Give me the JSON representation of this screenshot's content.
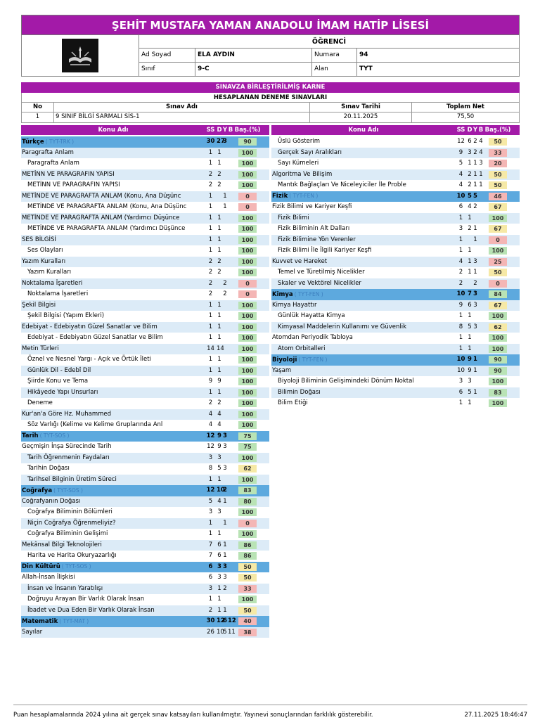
{
  "school_title": "ŞEHİT MUSTAFA YAMAN ANADOLU İMAM HATİP LİSESİ",
  "student": {
    "heading": "ÖĞRENCİ",
    "name_label": "Ad Soyad",
    "name": "ELA AYDIN",
    "number_label": "Numara",
    "number": "94",
    "class_label": "Sınıf",
    "class": "9-C",
    "field_label": "Alan",
    "field": "TYT"
  },
  "section_title": "SINAVZA BİRLEŞTİRİLMİŞ KARNE",
  "exams": {
    "heading": "HESAPLANAN DENEME SINAVLARI",
    "headers": [
      "No",
      "Sınav Adı",
      "Sınav Tarihi",
      "Toplam Net"
    ],
    "rows": [
      [
        "1",
        "9 SINIF BİLGİ SARMALI SİS-1",
        "20.11.2025",
        "75,50"
      ]
    ]
  },
  "table_headers": {
    "konu": "Konu Adı",
    "ss": "SS",
    "d": "D",
    "y": "Y",
    "b": "B",
    "bas": "Baş.(%)"
  },
  "left_rows": [
    {
      "name": "Türkçe",
      "tag": "( TYT-TRK )",
      "ss": "30",
      "d": "27",
      "y": "3",
      "b": "",
      "pct": "90",
      "level": "main"
    },
    {
      "name": "Paragrafta Anlam",
      "ss": "1",
      "d": "1",
      "y": "",
      "b": "",
      "pct": "100",
      "level": "top"
    },
    {
      "name": "Paragrafta Anlam",
      "ss": "1",
      "d": "1",
      "y": "",
      "b": "",
      "pct": "100",
      "level": "sub"
    },
    {
      "name": "METİNN VE PARAGRAFIN YAPISI",
      "ss": "2",
      "d": "2",
      "y": "",
      "b": "",
      "pct": "100",
      "level": "top"
    },
    {
      "name": "METİNN VE PARAGRAFIN YAPISI",
      "ss": "2",
      "d": "2",
      "y": "",
      "b": "",
      "pct": "100",
      "level": "sub"
    },
    {
      "name": "METİNDE VE PARAGRAFTA ANLAM (Konu, Ana Düşünc",
      "ss": "1",
      "d": "",
      "y": "1",
      "b": "",
      "pct": "0",
      "level": "top"
    },
    {
      "name": "METİNDE VE PARAGRAFTA ANLAM (Konu, Ana Düşünc",
      "ss": "1",
      "d": "",
      "y": "1",
      "b": "",
      "pct": "0",
      "level": "sub"
    },
    {
      "name": "METİNDE VE PARAGRAFTA ANLAM (Yardımcı Düşünce",
      "ss": "1",
      "d": "1",
      "y": "",
      "b": "",
      "pct": "100",
      "level": "top"
    },
    {
      "name": "METİNDE VE PARAGRAFTA ANLAM (Yardımcı Düşünce",
      "ss": "1",
      "d": "1",
      "y": "",
      "b": "",
      "pct": "100",
      "level": "sub"
    },
    {
      "name": "SES BİLGİSİ",
      "ss": "1",
      "d": "1",
      "y": "",
      "b": "",
      "pct": "100",
      "level": "top"
    },
    {
      "name": "Ses Olayları",
      "ss": "1",
      "d": "1",
      "y": "",
      "b": "",
      "pct": "100",
      "level": "sub"
    },
    {
      "name": "Yazım Kuralları",
      "ss": "2",
      "d": "2",
      "y": "",
      "b": "",
      "pct": "100",
      "level": "top"
    },
    {
      "name": "Yazım Kuralları",
      "ss": "2",
      "d": "2",
      "y": "",
      "b": "",
      "pct": "100",
      "level": "sub"
    },
    {
      "name": "Noktalama İşaretleri",
      "ss": "2",
      "d": "",
      "y": "2",
      "b": "",
      "pct": "0",
      "level": "top"
    },
    {
      "name": "Noktalama İşaretleri",
      "ss": "2",
      "d": "",
      "y": "2",
      "b": "",
      "pct": "0",
      "level": "sub"
    },
    {
      "name": "Şekil Bilgisi",
      "ss": "1",
      "d": "1",
      "y": "",
      "b": "",
      "pct": "100",
      "level": "top"
    },
    {
      "name": "Şekil Bilgisi (Yapım Ekleri)",
      "ss": "1",
      "d": "1",
      "y": "",
      "b": "",
      "pct": "100",
      "level": "sub"
    },
    {
      "name": "Edebiyat - Edebiyatın Güzel Sanatlar ve Bilim",
      "ss": "1",
      "d": "1",
      "y": "",
      "b": "",
      "pct": "100",
      "level": "top"
    },
    {
      "name": "Edebiyat - Edebiyatın Güzel Sanatlar ve Bilim",
      "ss": "1",
      "d": "1",
      "y": "",
      "b": "",
      "pct": "100",
      "level": "sub"
    },
    {
      "name": "Metin Türleri",
      "ss": "14",
      "d": "14",
      "y": "",
      "b": "",
      "pct": "100",
      "level": "top"
    },
    {
      "name": "Öznel ve Nesnel Yargı - Açık ve Örtük İleti",
      "ss": "1",
      "d": "1",
      "y": "",
      "b": "",
      "pct": "100",
      "level": "sub"
    },
    {
      "name": "Günlük Dil - Edebî Dil",
      "ss": "1",
      "d": "1",
      "y": "",
      "b": "",
      "pct": "100",
      "level": "sub"
    },
    {
      "name": "Şiirde Konu ve Tema",
      "ss": "9",
      "d": "9",
      "y": "",
      "b": "",
      "pct": "100",
      "level": "sub"
    },
    {
      "name": "Hikâyede Yapı Unsurları",
      "ss": "1",
      "d": "1",
      "y": "",
      "b": "",
      "pct": "100",
      "level": "sub"
    },
    {
      "name": "Deneme",
      "ss": "2",
      "d": "2",
      "y": "",
      "b": "",
      "pct": "100",
      "level": "sub"
    },
    {
      "name": "Kur'an'a Göre Hz. Muhammed",
      "ss": "4",
      "d": "4",
      "y": "",
      "b": "",
      "pct": "100",
      "level": "top"
    },
    {
      "name": "Söz Varlığı (Kelime ve Kelime Gruplarında Anl",
      "ss": "4",
      "d": "4",
      "y": "",
      "b": "",
      "pct": "100",
      "level": "sub"
    },
    {
      "name": "Tarih",
      "tag": "( TYT-SOS )",
      "ss": "12",
      "d": "9",
      "y": "3",
      "b": "",
      "pct": "75",
      "level": "main"
    },
    {
      "name": "Geçmişin İnşa Sürecinde Tarih",
      "ss": "12",
      "d": "9",
      "y": "3",
      "b": "",
      "pct": "75",
      "level": "top"
    },
    {
      "name": "Tarih Öğrenmenin Faydaları",
      "ss": "3",
      "d": "3",
      "y": "",
      "b": "",
      "pct": "100",
      "level": "sub"
    },
    {
      "name": "Tarihin Doğası",
      "ss": "8",
      "d": "5",
      "y": "3",
      "b": "",
      "pct": "62",
      "level": "sub"
    },
    {
      "name": "Tarihsel Bilginin Üretim Süreci",
      "ss": "1",
      "d": "1",
      "y": "",
      "b": "",
      "pct": "100",
      "level": "sub"
    },
    {
      "name": "Coğrafya",
      "tag": "( TYT-SOS )",
      "ss": "12",
      "d": "10",
      "y": "2",
      "b": "",
      "pct": "83",
      "level": "main"
    },
    {
      "name": "Coğrafyanın Doğası",
      "ss": "5",
      "d": "4",
      "y": "1",
      "b": "",
      "pct": "80",
      "level": "top"
    },
    {
      "name": "Coğrafya Biliminin Bölümleri",
      "ss": "3",
      "d": "3",
      "y": "",
      "b": "",
      "pct": "100",
      "level": "sub"
    },
    {
      "name": "Niçin Coğrafya Öğrenmeliyiz?",
      "ss": "1",
      "d": "",
      "y": "1",
      "b": "",
      "pct": "0",
      "level": "sub"
    },
    {
      "name": "Coğrafya Biliminin Gelişimi",
      "ss": "1",
      "d": "1",
      "y": "",
      "b": "",
      "pct": "100",
      "level": "sub"
    },
    {
      "name": "Mekânsal Bilgi Teknolojileri",
      "ss": "7",
      "d": "6",
      "y": "1",
      "b": "",
      "pct": "86",
      "level": "top"
    },
    {
      "name": "Harita ve Harita Okuryazarlığı",
      "ss": "7",
      "d": "6",
      "y": "1",
      "b": "",
      "pct": "86",
      "level": "sub"
    },
    {
      "name": "Din Kültürü",
      "tag": "( TYT-SOS )",
      "ss": "6",
      "d": "3",
      "y": "3",
      "b": "",
      "pct": "50",
      "level": "main"
    },
    {
      "name": "Allah-İnsan İlişkisi",
      "ss": "6",
      "d": "3",
      "y": "3",
      "b": "",
      "pct": "50",
      "level": "top"
    },
    {
      "name": "İnsan ve İnsanın Yaratılışı",
      "ss": "3",
      "d": "1",
      "y": "2",
      "b": "",
      "pct": "33",
      "level": "sub"
    },
    {
      "name": "Doğruyu Arayan Bir Varlık Olarak İnsan",
      "ss": "1",
      "d": "1",
      "y": "",
      "b": "",
      "pct": "100",
      "level": "sub"
    },
    {
      "name": "İbadet ve Dua Eden Bir Varlık Olarak İnsan",
      "ss": "2",
      "d": "1",
      "y": "1",
      "b": "",
      "pct": "50",
      "level": "sub"
    },
    {
      "name": "Matematik",
      "tag": "( TYT-MAT )",
      "ss": "30",
      "d": "12",
      "y": "6",
      "b": "12",
      "pct": "40",
      "level": "main"
    },
    {
      "name": "Sayılar",
      "ss": "26",
      "d": "10",
      "y": "5",
      "b": "11",
      "pct": "38",
      "level": "top"
    }
  ],
  "right_rows": [
    {
      "name": "Üslü Gösterim",
      "ss": "12",
      "d": "6",
      "y": "2",
      "b": "4",
      "pct": "50",
      "level": "sub"
    },
    {
      "name": "Gerçek Sayı Aralıkları",
      "ss": "9",
      "d": "3",
      "y": "2",
      "b": "4",
      "pct": "33",
      "level": "sub"
    },
    {
      "name": "Sayı Kümeleri",
      "ss": "5",
      "d": "1",
      "y": "1",
      "b": "3",
      "pct": "20",
      "level": "sub"
    },
    {
      "name": "Algoritma Ve Bilişim",
      "ss": "4",
      "d": "2",
      "y": "1",
      "b": "1",
      "pct": "50",
      "level": "top"
    },
    {
      "name": "Mantık Bağlaçları Ve Niceleyiciler İle Proble",
      "ss": "4",
      "d": "2",
      "y": "1",
      "b": "1",
      "pct": "50",
      "level": "sub"
    },
    {
      "name": "Fizik",
      "tag": "( TYT-FEN )",
      "ss": "10",
      "d": "5",
      "y": "5",
      "b": "",
      "pct": "46",
      "level": "main"
    },
    {
      "name": "Fizik Bilimi ve Kariyer Keşfi",
      "ss": "6",
      "d": "4",
      "y": "2",
      "b": "",
      "pct": "67",
      "level": "top"
    },
    {
      "name": "Fizik Bilimi",
      "ss": "1",
      "d": "1",
      "y": "",
      "b": "",
      "pct": "100",
      "level": "sub"
    },
    {
      "name": "Fizik Biliminin Alt Dalları",
      "ss": "3",
      "d": "2",
      "y": "1",
      "b": "",
      "pct": "67",
      "level": "sub"
    },
    {
      "name": "Fizik Bilimine Yön Verenler",
      "ss": "1",
      "d": "",
      "y": "1",
      "b": "",
      "pct": "0",
      "level": "sub"
    },
    {
      "name": "Fizik Bilimi İle İlgili Kariyer Keşfi",
      "ss": "1",
      "d": "1",
      "y": "",
      "b": "",
      "pct": "100",
      "level": "sub"
    },
    {
      "name": "Kuvvet ve Hareket",
      "ss": "4",
      "d": "1",
      "y": "3",
      "b": "",
      "pct": "25",
      "level": "top"
    },
    {
      "name": "Temel ve Türetilmiş Nicelikler",
      "ss": "2",
      "d": "1",
      "y": "1",
      "b": "",
      "pct": "50",
      "level": "sub"
    },
    {
      "name": "Skaler ve Vektörel Nicelikler",
      "ss": "2",
      "d": "",
      "y": "2",
      "b": "",
      "pct": "0",
      "level": "sub"
    },
    {
      "name": "Kimya",
      "tag": "( TYT-FEN )",
      "ss": "10",
      "d": "7",
      "y": "3",
      "b": "",
      "pct": "84",
      "level": "main"
    },
    {
      "name": "Kimya Hayattır",
      "ss": "9",
      "d": "6",
      "y": "3",
      "b": "",
      "pct": "67",
      "level": "top"
    },
    {
      "name": "Günlük Hayatta Kimya",
      "ss": "1",
      "d": "1",
      "y": "",
      "b": "",
      "pct": "100",
      "level": "sub"
    },
    {
      "name": "Kimyasal Maddelerin Kullanımı ve Güvenlik",
      "ss": "8",
      "d": "5",
      "y": "3",
      "b": "",
      "pct": "62",
      "level": "sub"
    },
    {
      "name": "Atomdan Periyodik Tabloya",
      "ss": "1",
      "d": "1",
      "y": "",
      "b": "",
      "pct": "100",
      "level": "top"
    },
    {
      "name": "Atom Orbitalleri",
      "ss": "1",
      "d": "1",
      "y": "",
      "b": "",
      "pct": "100",
      "level": "sub"
    },
    {
      "name": "Biyoloji",
      "tag": "( TYT-FEN )",
      "ss": "10",
      "d": "9",
      "y": "1",
      "b": "",
      "pct": "90",
      "level": "main"
    },
    {
      "name": "Yaşam",
      "ss": "10",
      "d": "9",
      "y": "1",
      "b": "",
      "pct": "90",
      "level": "top"
    },
    {
      "name": "Biyoloji Biliminin Gelişimindeki Dönüm Noktal",
      "ss": "3",
      "d": "3",
      "y": "",
      "b": "",
      "pct": "100",
      "level": "sub"
    },
    {
      "name": "Bilimin Doğası",
      "ss": "6",
      "d": "5",
      "y": "1",
      "b": "",
      "pct": "83",
      "level": "sub"
    },
    {
      "name": "Bilim Etiği",
      "ss": "1",
      "d": "1",
      "y": "",
      "b": "",
      "pct": "100",
      "level": "sub"
    }
  ],
  "footer": {
    "note": "Puan hesaplamalarında 2024 yılına ait gerçek sınav katsayıları kullanılmıştır. Yayınevi sonuçlarından farklılık gösterebilir.",
    "timestamp": "27.11.2025 18:46:47"
  }
}
